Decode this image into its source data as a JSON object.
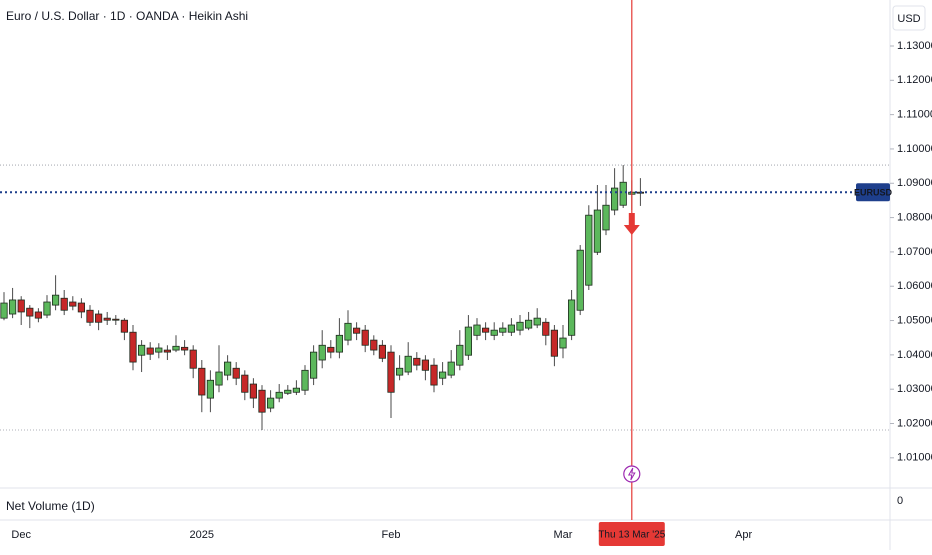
{
  "chart_data": {
    "type": "candlestick",
    "title": "Euro / U.S. Dollar · 1D · OANDA · Heikin Ashi",
    "currency": "USD",
    "categories": [
      null,
      null,
      "Dec",
      null,
      null,
      null,
      null,
      null,
      null,
      null,
      null,
      null,
      null,
      null,
      null,
      null,
      null,
      null,
      null,
      null,
      null,
      null,
      null,
      "2025",
      null,
      null,
      null,
      null,
      null,
      null,
      null,
      null,
      null,
      null,
      null,
      null,
      null,
      null,
      null,
      null,
      null,
      null,
      null,
      null,
      null,
      "Feb",
      null,
      null,
      null,
      null,
      null,
      null,
      null,
      null,
      null,
      null,
      null,
      null,
      null,
      null,
      null,
      null,
      null,
      null,
      null,
      "Mar",
      null,
      null,
      null,
      null,
      null,
      null,
      null,
      null,
      null,
      null,
      null,
      null,
      null,
      null,
      null,
      null,
      null,
      null,
      null,
      null,
      "Apr"
    ],
    "open": [
      1.0507,
      1.0519,
      1.056,
      1.0536,
      1.0525,
      1.0516,
      1.0545,
      1.0565,
      1.0554,
      1.0551,
      1.053,
      1.0519,
      1.0507,
      1.0504,
      1.0501,
      1.0466,
      1.0399,
      1.042,
      1.0408,
      1.0414,
      1.0414,
      1.0422,
      1.0414,
      1.0361,
      1.0274,
      1.0312,
      1.0341,
      1.0361,
      1.0341,
      1.0315,
      1.0297,
      1.0245,
      1.0274,
      1.0288,
      1.0291,
      1.0297,
      1.0332,
      1.0385,
      1.0422,
      1.0408,
      1.0443,
      1.0478,
      1.0472,
      1.0443,
      1.0428,
      1.0408,
      1.0341,
      1.035,
      1.039,
      1.0385,
      1.037,
      1.0332,
      1.0341,
      1.037,
      1.0399,
      1.0457,
      1.0478,
      1.0457,
      1.0466,
      1.0466,
      1.0472,
      1.0478,
      1.0487,
      1.0495,
      1.0472,
      1.042,
      1.0457,
      1.053,
      1.0603,
      1.0699,
      1.0764,
      1.0822,
      1.0836,
      1.0868,
      1.0874,
      null,
      null,
      null,
      null,
      null,
      null,
      null,
      null,
      null,
      null,
      null,
      null
    ],
    "high": [
      1.0583,
      1.0595,
      1.0571,
      1.0545,
      1.0536,
      1.0574,
      1.0632,
      1.0589,
      1.0571,
      1.0565,
      1.0545,
      1.053,
      1.0525,
      1.0516,
      1.0507,
      1.0487,
      1.0443,
      1.0437,
      1.0434,
      1.0428,
      1.0457,
      1.0443,
      1.0428,
      1.0385,
      1.0355,
      1.0428,
      1.0399,
      1.0379,
      1.0355,
      1.0332,
      1.0312,
      1.0297,
      1.0315,
      1.0312,
      1.0326,
      1.037,
      1.0428,
      1.0472,
      1.0443,
      1.0507,
      1.053,
      1.0495,
      1.0487,
      1.0457,
      1.0443,
      1.0428,
      1.0399,
      1.0437,
      1.0408,
      1.0399,
      1.039,
      1.0379,
      1.0414,
      1.0472,
      1.0516,
      1.0507,
      1.0495,
      1.0495,
      1.0495,
      1.0507,
      1.0516,
      1.0525,
      1.0536,
      1.0507,
      1.0487,
      1.0487,
      1.0589,
      1.072,
      1.0836,
      1.0895,
      1.0895,
      1.0944,
      1.0953,
      1.0909,
      1.0915,
      null,
      null,
      null,
      null,
      null,
      null,
      null,
      null,
      null,
      null,
      null,
      null
    ],
    "low": [
      1.0501,
      1.0507,
      1.0487,
      1.0478,
      1.0495,
      1.0507,
      1.053,
      1.0516,
      1.053,
      1.0507,
      1.0484,
      1.0472,
      1.0487,
      1.0487,
      1.0443,
      1.0355,
      1.035,
      1.0385,
      1.039,
      1.0385,
      1.0408,
      1.0399,
      1.0332,
      1.0233,
      1.0233,
      1.0291,
      1.0326,
      1.0312,
      1.0268,
      1.0245,
      1.0181,
      1.0233,
      1.0262,
      1.0283,
      1.0283,
      1.0283,
      1.0312,
      1.0361,
      1.039,
      1.039,
      1.0428,
      1.0443,
      1.0408,
      1.0399,
      1.0379,
      1.0216,
      1.0326,
      1.0341,
      1.0355,
      1.0326,
      1.0291,
      1.0312,
      1.0332,
      1.0355,
      1.0385,
      1.0443,
      1.0443,
      1.0443,
      1.0455,
      1.0455,
      1.0457,
      1.0472,
      1.0478,
      1.0428,
      1.0367,
      1.039,
      1.0443,
      1.0516,
      1.0589,
      1.0691,
      1.0749,
      1.0807,
      1.0828,
      1.0822,
      1.0834,
      null,
      null,
      null,
      null,
      null,
      null,
      null,
      null,
      null,
      null,
      null,
      null
    ],
    "close": [
      1.0551,
      1.056,
      1.0525,
      1.0513,
      1.0507,
      1.0554,
      1.0574,
      1.053,
      1.0542,
      1.0525,
      1.0495,
      1.0495,
      1.0501,
      1.0501,
      1.0466,
      1.0379,
      1.0428,
      1.0402,
      1.042,
      1.0408,
      1.0425,
      1.0414,
      1.0361,
      1.0283,
      1.0326,
      1.035,
      1.0379,
      1.0332,
      1.0291,
      1.0274,
      1.0233,
      1.0274,
      1.0291,
      1.0297,
      1.0303,
      1.0355,
      1.0408,
      1.0428,
      1.0408,
      1.0457,
      1.0492,
      1.0463,
      1.0428,
      1.0414,
      1.039,
      1.0291,
      1.0361,
      1.0396,
      1.037,
      1.0355,
      1.0312,
      1.035,
      1.0379,
      1.0428,
      1.0481,
      1.0487,
      1.0466,
      1.0472,
      1.0478,
      1.0487,
      1.0495,
      1.0501,
      1.0507,
      1.0457,
      1.0396,
      1.0449,
      1.056,
      1.0705,
      1.0807,
      1.0822,
      1.0836,
      1.0886,
      1.0903,
      1.0874,
      1.0871,
      null,
      null,
      null,
      null,
      null,
      null,
      null,
      null,
      null,
      null,
      null,
      null
    ],
    "up_color": "#5cb85c",
    "down_color": "#c62828",
    "border_color": "#1d2a1d",
    "ylim": [
      1.0015,
      1.1434
    ],
    "yticks": [
      {
        "value": 1.01,
        "label": "1.01000"
      },
      {
        "value": 1.02,
        "label": "1.02000"
      },
      {
        "value": 1.03,
        "label": "1.03000"
      },
      {
        "value": 1.04,
        "label": "1.04000"
      },
      {
        "value": 1.05,
        "label": "1.05000"
      },
      {
        "value": 1.06,
        "label": "1.06000"
      },
      {
        "value": 1.07,
        "label": "1.07000"
      },
      {
        "value": 1.08,
        "label": "1.08000"
      },
      {
        "value": 1.09,
        "label": "1.09000"
      },
      {
        "value": 1.1,
        "label": "1.10000"
      },
      {
        "value": 1.11,
        "label": "1.11000"
      },
      {
        "value": 1.12,
        "label": "1.12000"
      },
      {
        "value": 1.13,
        "label": "1.13000"
      }
    ],
    "grid": false,
    "reference_lines": [
      1.0953,
      1.0181
    ],
    "last_price": {
      "label": "EURUSD",
      "value": 1.0874,
      "color": "#1e3f8c"
    },
    "crosshair": {
      "label": "Thu 13 Mar '25",
      "index": 73,
      "color": "#e53935"
    },
    "volume_pane": {
      "title": "Net Volume (1D)",
      "yticks": [
        0
      ]
    }
  }
}
